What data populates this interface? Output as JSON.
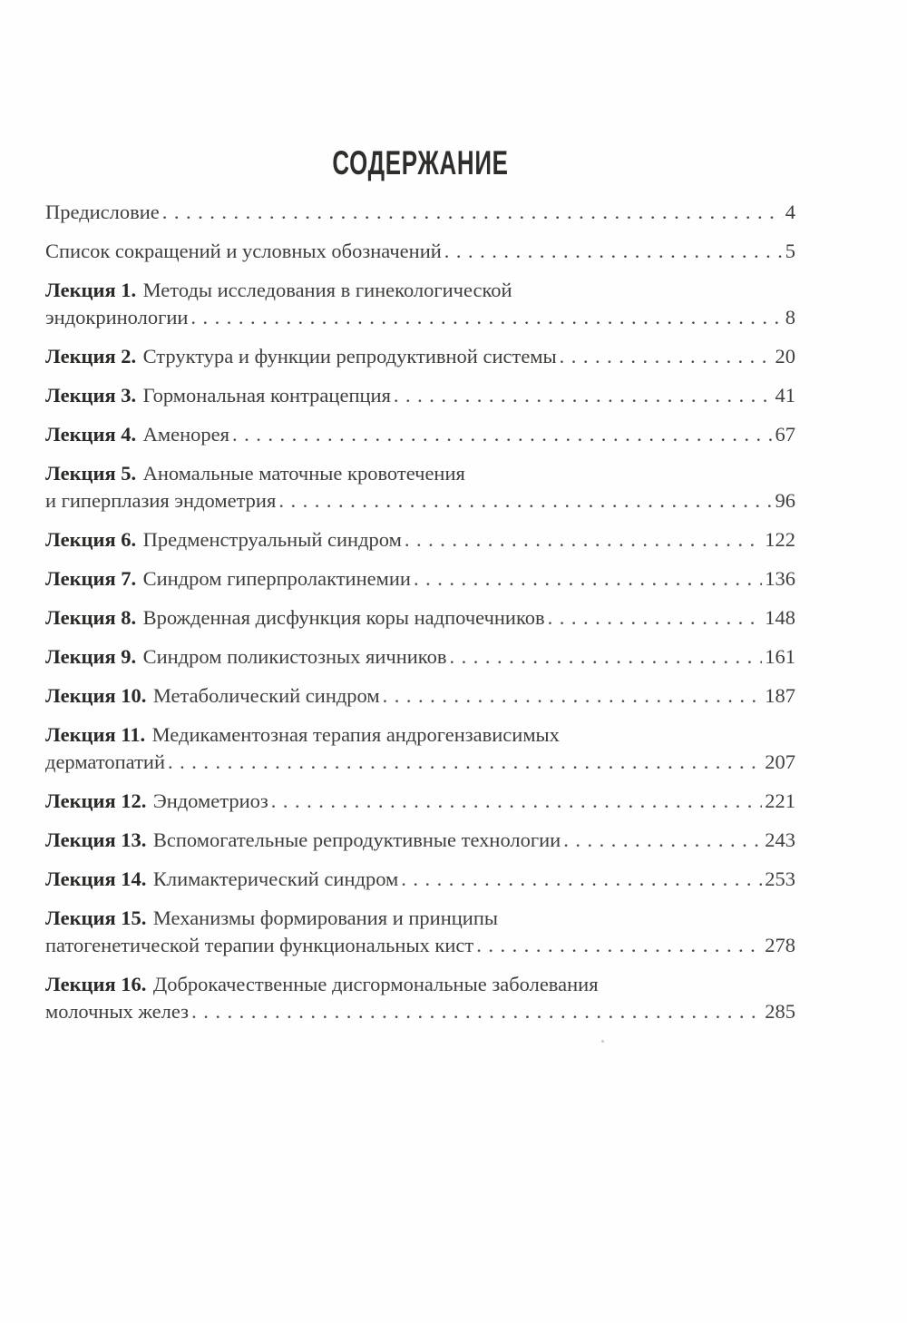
{
  "page": {
    "title": "СОДЕРЖАНИЕ",
    "background": "#fefefe",
    "text_color": "#3f3e3c",
    "label_color": "#2a2927"
  },
  "toc": {
    "entries": [
      {
        "label": "",
        "lines": [
          "Предисловие"
        ],
        "page": "4"
      },
      {
        "label": "",
        "lines": [
          "Список сокращений и условных обозначений"
        ],
        "page": "5"
      },
      {
        "label": "Лекция 1.",
        "lines": [
          "Методы исследования в гинекологической",
          "эндокринологии"
        ],
        "page": "8"
      },
      {
        "label": "Лекция 2.",
        "lines": [
          "Структура и функции репродуктивной системы"
        ],
        "page": "20"
      },
      {
        "label": "Лекция 3.",
        "lines": [
          "Гормональная контрацепция"
        ],
        "page": "41"
      },
      {
        "label": "Лекция 4.",
        "lines": [
          "Аменорея"
        ],
        "page": "67"
      },
      {
        "label": "Лекция 5.",
        "lines": [
          "Аномальные маточные кровотечения",
          "и гиперплазия эндометрия"
        ],
        "page": "96"
      },
      {
        "label": "Лекция 6.",
        "lines": [
          "Предменструальный синдром"
        ],
        "page": "122"
      },
      {
        "label": "Лекция 7.",
        "lines": [
          "Синдром гиперпролактинемии"
        ],
        "page": "136"
      },
      {
        "label": "Лекция 8.",
        "lines": [
          "Врожденная дисфункция коры надпочечников"
        ],
        "page": "148"
      },
      {
        "label": "Лекция 9.",
        "lines": [
          "Синдром поликистозных яичников"
        ],
        "page": "161"
      },
      {
        "label": "Лекция 10.",
        "lines": [
          "Метаболический синдром"
        ],
        "page": "187"
      },
      {
        "label": "Лекция 11.",
        "lines": [
          "Медикаментозная терапия андрогензависимых",
          "дерматопатий"
        ],
        "page": "207"
      },
      {
        "label": "Лекция 12.",
        "lines": [
          "Эндометриоз"
        ],
        "page": "221"
      },
      {
        "label": "Лекция 13.",
        "lines": [
          "Вспомогательные репродуктивные технологии"
        ],
        "page": "243"
      },
      {
        "label": "Лекция 14.",
        "lines": [
          "Климактерический синдром"
        ],
        "page": "253"
      },
      {
        "label": "Лекция 15.",
        "lines": [
          "Механизмы формирования и принципы",
          "патогенетической терапии функциональных кист"
        ],
        "page": "278"
      },
      {
        "label": "Лекция 16.",
        "lines": [
          "Доброкачественные дисгормональные заболевания",
          "молочных желез"
        ],
        "page": "285"
      }
    ]
  }
}
